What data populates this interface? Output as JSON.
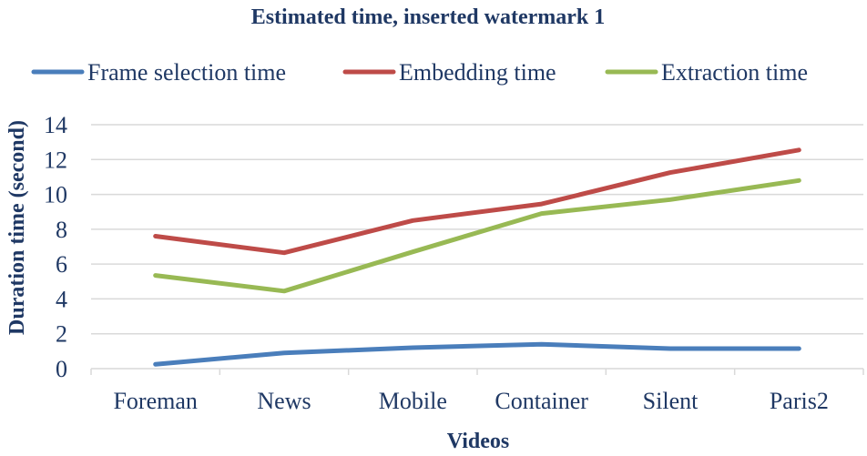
{
  "chart_data": {
    "type": "line",
    "title": "Estimated time, inserted watermark 1",
    "xlabel": "Videos",
    "ylabel": "Duration time (second)",
    "categories": [
      "Foreman",
      "News",
      "Mobile",
      "Container",
      "Silent",
      "Paris2"
    ],
    "ylim": [
      0,
      14
    ],
    "yticks": [
      0,
      2,
      4,
      6,
      8,
      10,
      12,
      14
    ],
    "grid": true,
    "legend_position": "top",
    "series": [
      {
        "name": "Frame selection time",
        "color": "#4a7ebb",
        "values": [
          0.25,
          0.9,
          1.2,
          1.4,
          1.15,
          1.15
        ]
      },
      {
        "name": "Embedding time",
        "color": "#be4b48",
        "values": [
          7.6,
          6.65,
          8.5,
          9.45,
          11.25,
          12.55
        ]
      },
      {
        "name": "Extraction time",
        "color": "#98b954",
        "values": [
          5.35,
          4.45,
          6.7,
          8.9,
          9.7,
          10.8
        ]
      }
    ]
  }
}
